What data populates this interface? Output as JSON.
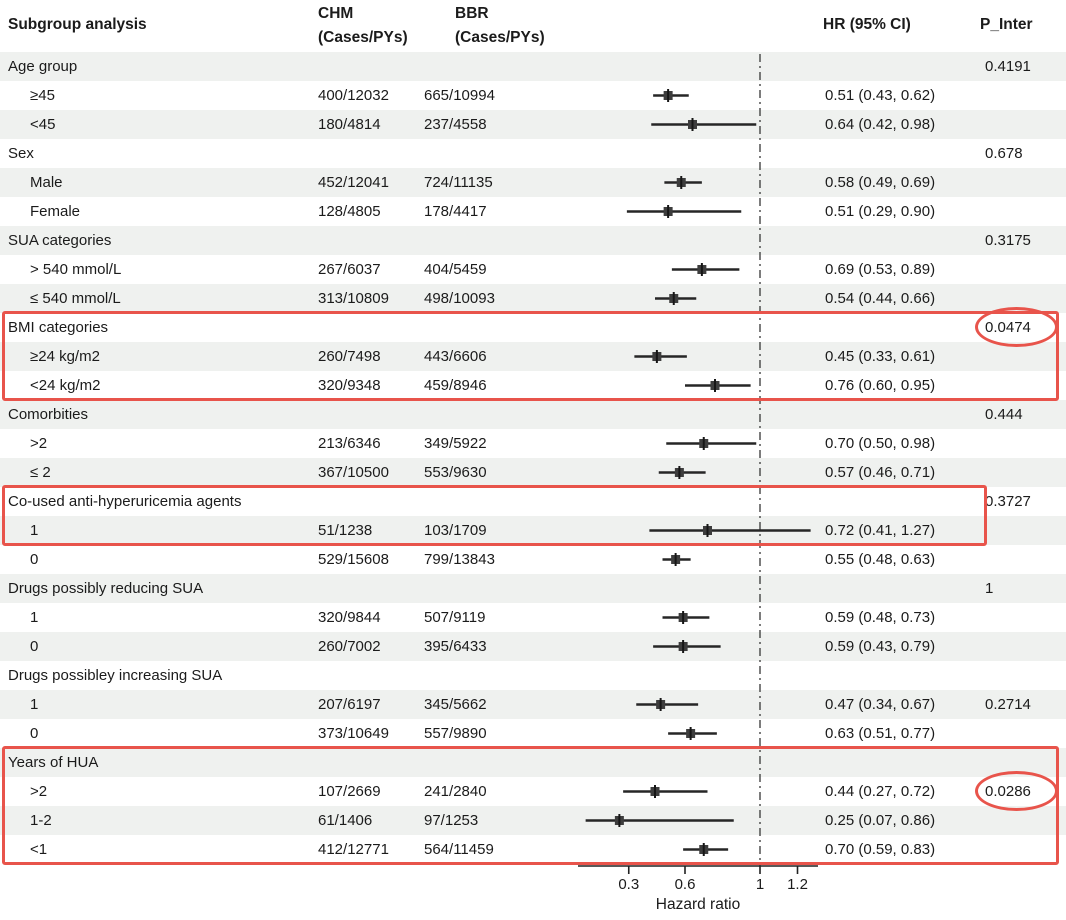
{
  "header": {
    "subgroup": "Subgroup analysis",
    "chm_line1": "CHM",
    "chm_line2": "(Cases/PYs)",
    "bbr_line1": "BBR",
    "bbr_line2": "(Cases/PYs)",
    "hr": "HR (95% CI)",
    "p_inter": "P_Inter"
  },
  "chart_data": {
    "type": "forest",
    "xlabel": "Hazard ratio",
    "xticks": [
      0.3,
      0.6,
      1,
      1.2
    ],
    "x_axis_range": [
      0.03,
      1.31
    ],
    "reference_line": 1,
    "rows": [
      {
        "label": "Age group",
        "indent": false,
        "chm": "",
        "bbr": "",
        "hr": null,
        "lo": null,
        "hi": null,
        "hr_text": "",
        "p": "0.4191"
      },
      {
        "label": "≥45",
        "indent": true,
        "chm": "400/12032",
        "bbr": "665/10994",
        "hr": 0.51,
        "lo": 0.43,
        "hi": 0.62,
        "hr_text": "0.51 (0.43, 0.62)",
        "p": ""
      },
      {
        "label": "<45",
        "indent": true,
        "chm": "180/4814",
        "bbr": "237/4558",
        "hr": 0.64,
        "lo": 0.42,
        "hi": 0.98,
        "hr_text": "0.64 (0.42, 0.98)",
        "p": ""
      },
      {
        "label": "Sex",
        "indent": false,
        "chm": "",
        "bbr": "",
        "hr": null,
        "lo": null,
        "hi": null,
        "hr_text": "",
        "p": "0.678"
      },
      {
        "label": "Male",
        "indent": true,
        "chm": "452/12041",
        "bbr": "724/11135",
        "hr": 0.58,
        "lo": 0.49,
        "hi": 0.69,
        "hr_text": "0.58 (0.49, 0.69)",
        "p": ""
      },
      {
        "label": "Female",
        "indent": true,
        "chm": "128/4805",
        "bbr": "178/4417",
        "hr": 0.51,
        "lo": 0.29,
        "hi": 0.9,
        "hr_text": "0.51 (0.29, 0.90)",
        "p": ""
      },
      {
        "label": "SUA categories",
        "indent": false,
        "chm": "",
        "bbr": "",
        "hr": null,
        "lo": null,
        "hi": null,
        "hr_text": "",
        "p": "0.3175"
      },
      {
        "label": "> 540 mmol/L",
        "indent": true,
        "chm": "267/6037",
        "bbr": "404/5459",
        "hr": 0.69,
        "lo": 0.53,
        "hi": 0.89,
        "hr_text": "0.69 (0.53, 0.89)",
        "p": ""
      },
      {
        "label": "≤ 540 mmol/L",
        "indent": true,
        "chm": "313/10809",
        "bbr": "498/10093",
        "hr": 0.54,
        "lo": 0.44,
        "hi": 0.66,
        "hr_text": "0.54 (0.44, 0.66)",
        "p": ""
      },
      {
        "label": "BMI categories",
        "indent": false,
        "chm": "",
        "bbr": "",
        "hr": null,
        "lo": null,
        "hi": null,
        "hr_text": "",
        "p": "0.0474"
      },
      {
        "label": "≥24 kg/m2",
        "indent": true,
        "chm": "260/7498",
        "bbr": "443/6606",
        "hr": 0.45,
        "lo": 0.33,
        "hi": 0.61,
        "hr_text": "0.45 (0.33, 0.61)",
        "p": ""
      },
      {
        "label": "<24 kg/m2",
        "indent": true,
        "chm": "320/9348",
        "bbr": "459/8946",
        "hr": 0.76,
        "lo": 0.6,
        "hi": 0.95,
        "hr_text": "0.76 (0.60, 0.95)",
        "p": ""
      },
      {
        "label": "Comorbities",
        "indent": false,
        "chm": "",
        "bbr": "",
        "hr": null,
        "lo": null,
        "hi": null,
        "hr_text": "",
        "p": "0.444"
      },
      {
        "label": ">2",
        "indent": true,
        "chm": "213/6346",
        "bbr": "349/5922",
        "hr": 0.7,
        "lo": 0.5,
        "hi": 0.98,
        "hr_text": "0.70 (0.50, 0.98)",
        "p": ""
      },
      {
        "label": "≤ 2",
        "indent": true,
        "chm": "367/10500",
        "bbr": "553/9630",
        "hr": 0.57,
        "lo": 0.46,
        "hi": 0.71,
        "hr_text": "0.57 (0.46, 0.71)",
        "p": ""
      },
      {
        "label": "Co-used anti-hyperuricemia agents",
        "indent": false,
        "chm": "",
        "bbr": "",
        "hr": null,
        "lo": null,
        "hi": null,
        "hr_text": "",
        "p": "0.3727"
      },
      {
        "label": "1",
        "indent": true,
        "chm": "51/1238",
        "bbr": "103/1709",
        "hr": 0.72,
        "lo": 0.41,
        "hi": 1.27,
        "hr_text": "0.72 (0.41, 1.27)",
        "p": ""
      },
      {
        "label": "0",
        "indent": true,
        "chm": "529/15608",
        "bbr": "799/13843",
        "hr": 0.55,
        "lo": 0.48,
        "hi": 0.63,
        "hr_text": "0.55 (0.48, 0.63)",
        "p": ""
      },
      {
        "label": "Drugs possibly reducing SUA",
        "indent": false,
        "chm": "",
        "bbr": "",
        "hr": null,
        "lo": null,
        "hi": null,
        "hr_text": "",
        "p": "1"
      },
      {
        "label": "1",
        "indent": true,
        "chm": "320/9844",
        "bbr": "507/9119",
        "hr": 0.59,
        "lo": 0.48,
        "hi": 0.73,
        "hr_text": "0.59 (0.48, 0.73)",
        "p": ""
      },
      {
        "label": "0",
        "indent": true,
        "chm": "260/7002",
        "bbr": "395/6433",
        "hr": 0.59,
        "lo": 0.43,
        "hi": 0.79,
        "hr_text": "0.59 (0.43, 0.79)",
        "p": ""
      },
      {
        "label": "Drugs possibley increasing SUA",
        "indent": false,
        "chm": "",
        "bbr": "",
        "hr": null,
        "lo": null,
        "hi": null,
        "hr_text": "",
        "p": ""
      },
      {
        "label": "1",
        "indent": true,
        "chm": "207/6197",
        "bbr": "345/5662",
        "hr": 0.47,
        "lo": 0.34,
        "hi": 0.67,
        "hr_text": "0.47 (0.34, 0.67)",
        "p": "0.2714"
      },
      {
        "label": "0",
        "indent": true,
        "chm": "373/10649",
        "bbr": "557/9890",
        "hr": 0.63,
        "lo": 0.51,
        "hi": 0.77,
        "hr_text": "0.63 (0.51, 0.77)",
        "p": ""
      },
      {
        "label": "Years of HUA",
        "indent": false,
        "chm": "",
        "bbr": "",
        "hr": null,
        "lo": null,
        "hi": null,
        "hr_text": "",
        "p": ""
      },
      {
        "label": ">2",
        "indent": true,
        "chm": "107/2669",
        "bbr": "241/2840",
        "hr": 0.44,
        "lo": 0.27,
        "hi": 0.72,
        "hr_text": "0.44 (0.27, 0.72)",
        "p": "0.0286"
      },
      {
        "label": "1-2",
        "indent": true,
        "chm": "61/1406",
        "bbr": "97/1253",
        "hr": 0.25,
        "lo": 0.07,
        "hi": 0.86,
        "hr_text": "0.25 (0.07, 0.86)",
        "p": ""
      },
      {
        "label": "<1",
        "indent": true,
        "chm": "412/12771",
        "bbr": "564/11459",
        "hr": 0.7,
        "lo": 0.59,
        "hi": 0.83,
        "hr_text": "0.70 (0.59, 0.83)",
        "p": ""
      }
    ]
  },
  "annotations": {
    "color": "#e8544b",
    "boxes": [
      {
        "section": "BMI categories",
        "from_row": 9,
        "to_row": 11,
        "span": "full"
      },
      {
        "section": "Co-used anti-hyperuricemia agents",
        "from_row": 15,
        "to_row": 16,
        "span": "hr"
      },
      {
        "section": "Years of HUA",
        "from_row": 24,
        "to_row": 27,
        "span": "full"
      }
    ],
    "ellipses": [
      {
        "row": 9,
        "value": "0.0474"
      },
      {
        "row": 25,
        "value": "0.0286"
      }
    ]
  },
  "colors": {
    "row_shade": "#eff1ef",
    "text": "#1b1b1b",
    "marker": "#3d3d3d",
    "ci_line": "#262626",
    "ref_line": "#444444",
    "highlight_red": "#e8544b"
  }
}
